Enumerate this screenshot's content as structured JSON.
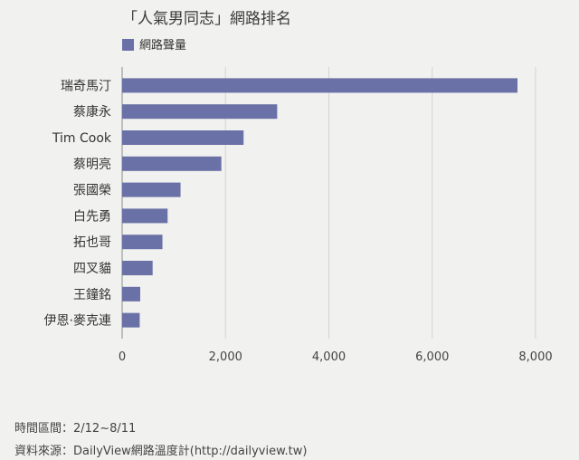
{
  "chart_data": {
    "type": "bar",
    "orientation": "horizontal",
    "title": "「人氣男同志」網路排名",
    "categories": [
      "瑞奇馬汀",
      "蔡康永",
      "Tim Cook",
      "蔡明亮",
      "張國榮",
      "白先勇",
      "拓也哥",
      "四叉貓",
      "王鐘銘",
      "伊恩·麥克連"
    ],
    "series": [
      {
        "name": "網路聲量",
        "values": [
          7650,
          3000,
          2350,
          1920,
          1130,
          880,
          780,
          590,
          350,
          340
        ]
      }
    ],
    "xlim": [
      0,
      8000
    ],
    "xticks": [
      0,
      2000,
      4000,
      6000,
      8000
    ],
    "xtick_labels": [
      "0",
      "2,000",
      "4,000",
      "6,000",
      "8,000"
    ],
    "grid": true,
    "legend_position": "top-left",
    "bar_color": "#6a71a6"
  },
  "footer": {
    "period": "時間區間：2/12~8/11",
    "source": "資料來源：DailyView網路溫度計(http://dailyview.tw)"
  }
}
